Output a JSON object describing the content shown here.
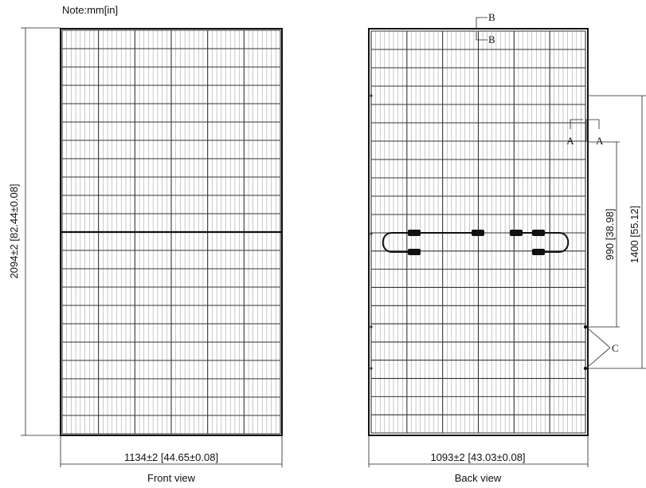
{
  "note": "Note:mm[in]",
  "front_view": {
    "caption": "Front view",
    "height_dim": "2094±2 [82.44±0.08]",
    "width_dim": "1134±2 [44.65±0.08]"
  },
  "back_view": {
    "caption": "Back view",
    "width_dim": "1093±2 [43.03±0.08]",
    "mount_spacing_dim": "990 [38.98]",
    "outer_spacing_dim": "1400 [55.12]",
    "section_b": "B",
    "section_a": "A",
    "callout_c": "C"
  },
  "colors": {
    "line": "#111111",
    "cell_line": "#333333"
  }
}
